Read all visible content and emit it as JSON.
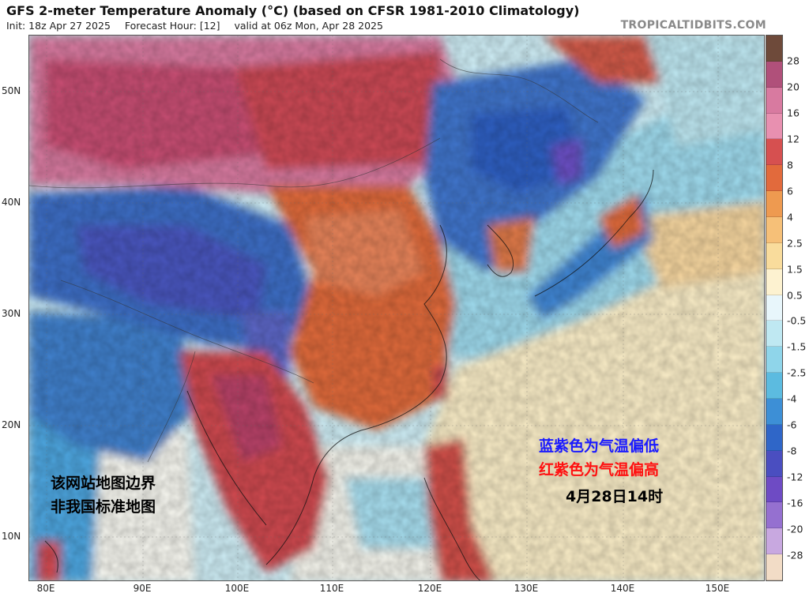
{
  "header": {
    "title": "GFS 2-meter Temperature Anomaly (°C) (based on CFSR 1981-2010 Climatology)",
    "init": "Init: 18z Apr 27 2025",
    "forecast_hour": "Forecast Hour: [12]",
    "valid": "valid at 06z Mon, Apr 28 2025",
    "brand": "TROPICALTIDBITS.COM"
  },
  "map": {
    "lat_labels": [
      "50N",
      "40N",
      "30N",
      "20N",
      "10N"
    ],
    "lon_labels": [
      "80E",
      "90E",
      "100E",
      "110E",
      "120E",
      "130E",
      "140E",
      "150E"
    ]
  },
  "colorbar": {
    "labels": [
      "28",
      "20",
      "16",
      "12",
      "8",
      "6",
      "4",
      "2.5",
      "1.5",
      "0.5",
      "-0.5",
      "-1.5",
      "-2.5",
      "-4",
      "-6",
      "-8",
      "-12",
      "-16",
      "-20",
      "-28"
    ],
    "colors": [
      "#6e4a3a",
      "#b0507a",
      "#d87aa0",
      "#e890b0",
      "#d65050",
      "#e26a3c",
      "#ee9a50",
      "#f6c078",
      "#f9dc9c",
      "#fdf2d0",
      "#e8f6fb",
      "#bfe8f2",
      "#8fd5ea",
      "#5cbbe0",
      "#3d8fd6",
      "#2f66c8",
      "#4a4ec0",
      "#6e4bc4",
      "#9570d0",
      "#c8a8e0",
      "#f2dcc6"
    ]
  },
  "annotations": {
    "blue_text": "蓝紫色为气温偏低",
    "red_text": "红紫色为气温偏高",
    "date_text": "4月28日14时",
    "note_line1": "该网站地图边界",
    "note_line2": "非我国标准地图"
  },
  "colors": {
    "cold_strong": "#4a5cc8",
    "cold": "#3d8fd6",
    "cool": "#8fd5ea",
    "neutral": "#fdf2d0",
    "warm": "#e26a3c",
    "hot": "#c8485a",
    "very_hot": "#d87aa0"
  }
}
